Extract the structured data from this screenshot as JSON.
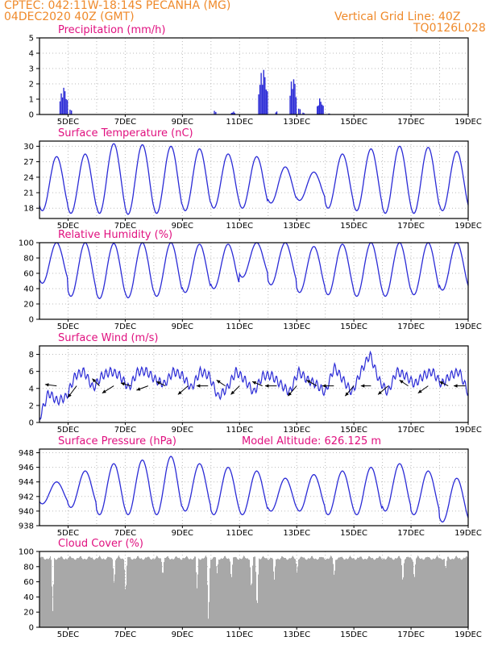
{
  "header": {
    "line1_left": "CPTEC:   042:11W-18:14S   PECANHA (MG)",
    "line2_left": "04DEC2020 40Z (GMT)",
    "line2_right": "Vertical Grid Line: 40Z",
    "line3_right": "TQ0126L028"
  },
  "colors": {
    "header": "#ef8a2b",
    "title": "#e0107f",
    "series": "#2b2bd6",
    "cloud": "#a8a8a8"
  },
  "chart_data": [
    {
      "type": "bar",
      "title": "Precipitation (mm/h)",
      "ylim": [
        0,
        5
      ],
      "yticks": [
        0,
        1,
        2,
        3,
        4,
        5
      ],
      "x_range_days": [
        4.0,
        19.0
      ],
      "xticks": [
        "5DEC",
        "7DEC",
        "9DEC",
        "11DEC",
        "13DEC",
        "15DEC",
        "17DEC",
        "19DEC"
      ],
      "bursts": [
        {
          "start": 4.7,
          "end": 5.0,
          "peak": 1.9
        },
        {
          "start": 5.05,
          "end": 5.15,
          "peak": 0.4
        },
        {
          "start": 10.1,
          "end": 10.2,
          "peak": 0.3
        },
        {
          "start": 10.7,
          "end": 10.85,
          "peak": 0.2
        },
        {
          "start": 11.65,
          "end": 12.0,
          "peak": 3.2
        },
        {
          "start": 12.25,
          "end": 12.32,
          "peak": 0.25
        },
        {
          "start": 12.75,
          "end": 13.0,
          "peak": 2.7
        },
        {
          "start": 13.05,
          "end": 13.15,
          "peak": 0.5
        },
        {
          "start": 13.2,
          "end": 13.28,
          "peak": 0.15
        },
        {
          "start": 13.7,
          "end": 13.95,
          "peak": 1.1
        },
        {
          "start": 14.1,
          "end": 14.15,
          "peak": 0.1
        }
      ]
    },
    {
      "type": "line",
      "title": "Surface Temperature (nC)",
      "ylim": [
        16,
        31
      ],
      "yticks": [
        18,
        21,
        24,
        27,
        30
      ],
      "x_range_days": [
        4.0,
        19.0
      ],
      "xticks": [
        "5DEC",
        "7DEC",
        "9DEC",
        "11DEC",
        "13DEC",
        "15DEC",
        "17DEC",
        "19DEC"
      ],
      "daily_max": [
        28,
        28.5,
        30.5,
        30.3,
        30,
        29.5,
        28.5,
        28,
        26,
        25,
        28.5,
        29.5,
        30,
        29.8,
        29
      ],
      "daily_min": [
        17.5,
        17,
        17,
        16.8,
        17,
        17.5,
        18,
        18,
        19,
        19.5,
        18,
        17.5,
        17,
        17,
        17.5
      ]
    },
    {
      "type": "line",
      "title": "Relative Humidity (%)",
      "ylim": [
        0,
        100
      ],
      "yticks": [
        0,
        20,
        40,
        60,
        80,
        100
      ],
      "x_range_days": [
        4.0,
        19.0
      ],
      "xticks": [
        "5DEC",
        "7DEC",
        "9DEC",
        "11DEC",
        "13DEC",
        "15DEC",
        "17DEC",
        "19DEC"
      ],
      "daily_max": [
        100,
        100,
        99,
        100,
        100,
        98,
        98,
        100,
        100,
        95,
        98,
        100,
        100,
        100,
        100
      ],
      "daily_min": [
        47,
        30,
        27,
        28,
        30,
        35,
        40,
        55,
        45,
        35,
        32,
        30,
        30,
        32,
        38
      ]
    },
    {
      "type": "line",
      "title": "Surface Wind (m/s)",
      "ylim": [
        0,
        9
      ],
      "yticks": [
        0,
        2,
        4,
        6,
        8
      ],
      "x_range_days": [
        4.0,
        19.0
      ],
      "xticks": [
        "5DEC",
        "7DEC",
        "9DEC",
        "11DEC",
        "13DEC",
        "15DEC",
        "17DEC",
        "19DEC"
      ],
      "speed_samples": [
        0.5,
        3.5,
        2.5,
        3,
        5.5,
        6,
        4,
        5.5,
        6,
        5.5,
        4,
        6,
        6,
        5,
        4.5,
        6,
        5.5,
        4,
        6,
        5.5,
        3,
        4,
        6,
        5,
        3.5,
        5.5,
        5.5,
        4.5,
        3.5,
        6,
        5,
        4.5,
        3.5,
        6.5,
        5,
        3.5,
        6,
        8,
        5,
        3.5,
        6,
        5.5,
        4.5,
        5.5,
        6,
        4.5,
        5.5,
        6,
        3.5
      ],
      "vectors": [
        {
          "day": 4.6,
          "u": -0.8,
          "v": 0.1
        },
        {
          "day": 5.3,
          "u": -0.6,
          "v": -0.8
        },
        {
          "day": 6.1,
          "u": -0.5,
          "v": 0.5
        },
        {
          "day": 6.6,
          "u": -0.8,
          "v": -0.5
        },
        {
          "day": 7.2,
          "u": -0.7,
          "v": 0.2
        },
        {
          "day": 7.8,
          "u": -0.8,
          "v": -0.3
        },
        {
          "day": 8.4,
          "u": -0.6,
          "v": 0.3
        },
        {
          "day": 9.2,
          "u": -0.7,
          "v": -0.6
        },
        {
          "day": 9.9,
          "u": -0.8,
          "v": 0.0
        },
        {
          "day": 10.5,
          "u": -0.6,
          "v": 0.4
        },
        {
          "day": 11.0,
          "u": -0.6,
          "v": -0.6
        },
        {
          "day": 11.8,
          "u": -0.7,
          "v": 0.3
        },
        {
          "day": 12.3,
          "u": -0.8,
          "v": 0.0
        },
        {
          "day": 13.0,
          "u": -0.6,
          "v": -0.7
        },
        {
          "day": 13.7,
          "u": -0.7,
          "v": 0.4
        },
        {
          "day": 14.3,
          "u": -0.8,
          "v": 0.0
        },
        {
          "day": 15.0,
          "u": -0.6,
          "v": -0.7
        },
        {
          "day": 15.6,
          "u": -0.7,
          "v": 0.0
        },
        {
          "day": 16.2,
          "u": -0.7,
          "v": -0.6
        },
        {
          "day": 16.9,
          "u": -0.6,
          "v": 0.4
        },
        {
          "day": 17.6,
          "u": -0.7,
          "v": -0.5
        },
        {
          "day": 18.3,
          "u": -0.6,
          "v": 0.3
        },
        {
          "day": 18.9,
          "u": -0.8,
          "v": 0.0
        }
      ]
    },
    {
      "type": "line",
      "title": "Surface Pressure (hPa)",
      "annotation": "Model Altitude: 626.125 m",
      "ylim": [
        938,
        948.5
      ],
      "yticks": [
        938,
        940,
        942,
        944,
        946,
        948
      ],
      "x_range_days": [
        4.0,
        19.0
      ],
      "xticks": [
        "5DEC",
        "7DEC",
        "9DEC",
        "11DEC",
        "13DEC",
        "15DEC",
        "17DEC",
        "19DEC"
      ],
      "daily_max": [
        944,
        945.5,
        946.5,
        947,
        947.5,
        946.5,
        946,
        945.5,
        944.5,
        945,
        945.5,
        946,
        946.5,
        945.5,
        944.5
      ],
      "daily_min": [
        941,
        940.5,
        939.5,
        939.5,
        939.5,
        940,
        939.5,
        939.5,
        940,
        940,
        939.5,
        939.5,
        940,
        939.5,
        938.5
      ]
    },
    {
      "type": "bar",
      "title": "Cloud Cover (%)",
      "ylim": [
        0,
        100
      ],
      "yticks": [
        0,
        20,
        40,
        60,
        80,
        100
      ],
      "x_range_days": [
        4.0,
        19.0
      ],
      "xticks": [
        "5DEC",
        "7DEC",
        "9DEC",
        "11DEC",
        "13DEC",
        "15DEC",
        "17DEC",
        "19DEC"
      ],
      "baseline": 95,
      "dips": [
        {
          "day": 4.45,
          "value": 20
        },
        {
          "day": 6.6,
          "value": 55
        },
        {
          "day": 7.0,
          "value": 40
        },
        {
          "day": 8.3,
          "value": 65
        },
        {
          "day": 9.5,
          "value": 50
        },
        {
          "day": 9.9,
          "value": 0
        },
        {
          "day": 10.2,
          "value": 70
        },
        {
          "day": 10.7,
          "value": 60
        },
        {
          "day": 11.4,
          "value": 45
        },
        {
          "day": 11.6,
          "value": 15
        },
        {
          "day": 12.2,
          "value": 60
        },
        {
          "day": 13.0,
          "value": 70
        },
        {
          "day": 14.3,
          "value": 65
        },
        {
          "day": 16.7,
          "value": 55
        },
        {
          "day": 17.1,
          "value": 60
        },
        {
          "day": 18.2,
          "value": 75
        }
      ]
    }
  ]
}
